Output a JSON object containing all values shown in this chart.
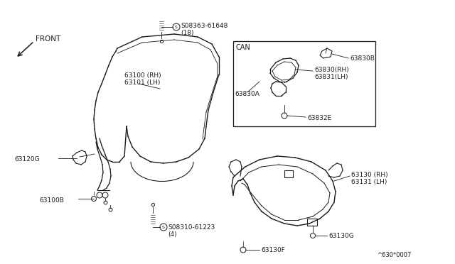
{
  "bg_color": "#ffffff",
  "line_color": "#1a1a1a",
  "text_color": "#1a1a1a",
  "fig_width": 6.4,
  "fig_height": 3.72,
  "dpi": 100,
  "watermark": "^630*0007",
  "front_label": "FRONT",
  "labels": {
    "s08363": "S08363-61648\n(18)",
    "s08310": "S08310-61223\n(4)",
    "p63100": "63100 (RH)\n63101 (LH)",
    "p63120g": "63120G",
    "p63100b": "63100B",
    "p63130rh": "63130 (RH)\n63131 (LH)",
    "p63130g": "63130G",
    "p63130f": "63130F",
    "can": "CAN",
    "p63830b": "63830B",
    "p63830a": "63830A",
    "p63830rh": "63830(RH)\n63831(LH)",
    "p63832e": "63832E"
  }
}
